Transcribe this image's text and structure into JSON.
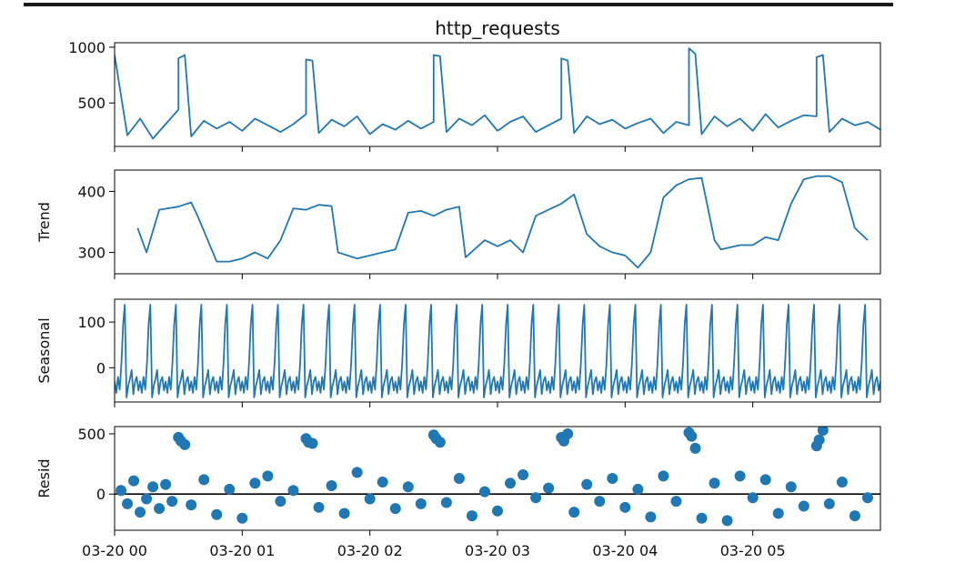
{
  "chart_data": {
    "type": "line",
    "title": "http_requests",
    "x_ticks": [
      "03-20 00",
      "03-20 01",
      "03-20 02",
      "03-20 03",
      "03-20 04",
      "03-20 05"
    ],
    "x_range_hours": [
      0,
      6
    ],
    "series_color": "#1f77b4",
    "panels": [
      {
        "id": "observed",
        "ylabel": "",
        "kind": "line",
        "ylim": [
          110,
          1040
        ],
        "yticks": [
          500,
          1000
        ],
        "x": [
          0.0,
          0.1,
          0.2,
          0.3,
          0.4,
          0.5,
          0.5,
          0.55,
          0.6,
          0.7,
          0.8,
          0.9,
          1.0,
          1.1,
          1.2,
          1.3,
          1.4,
          1.5,
          1.5,
          1.55,
          1.6,
          1.7,
          1.8,
          1.9,
          2.0,
          2.1,
          2.2,
          2.3,
          2.4,
          2.5,
          2.5,
          2.55,
          2.6,
          2.7,
          2.8,
          2.9,
          3.0,
          3.1,
          3.2,
          3.3,
          3.4,
          3.5,
          3.5,
          3.55,
          3.6,
          3.7,
          3.8,
          3.9,
          4.0,
          4.1,
          4.2,
          4.3,
          4.4,
          4.5,
          4.5,
          4.55,
          4.6,
          4.7,
          4.8,
          4.9,
          5.0,
          5.1,
          5.2,
          5.3,
          5.4,
          5.5,
          5.5,
          5.55,
          5.6,
          5.7,
          5.8,
          5.9,
          6.0
        ],
        "values": [
          930,
          210,
          360,
          180,
          310,
          440,
          900,
          930,
          200,
          340,
          270,
          330,
          250,
          360,
          300,
          240,
          310,
          400,
          890,
          880,
          230,
          350,
          290,
          380,
          220,
          310,
          260,
          340,
          270,
          330,
          930,
          920,
          240,
          360,
          300,
          390,
          250,
          330,
          380,
          240,
          300,
          360,
          900,
          880,
          230,
          380,
          310,
          350,
          270,
          320,
          360,
          230,
          330,
          300,
          990,
          940,
          220,
          380,
          290,
          360,
          250,
          400,
          280,
          340,
          390,
          380,
          910,
          930,
          240,
          360,
          300,
          330,
          260
        ]
      },
      {
        "id": "trend",
        "ylabel": "Trend",
        "kind": "line",
        "ylim": [
          265,
          435
        ],
        "yticks": [
          300,
          400
        ],
        "x": [
          0.18,
          0.25,
          0.35,
          0.5,
          0.6,
          0.65,
          0.8,
          0.9,
          1.0,
          1.1,
          1.2,
          1.3,
          1.4,
          1.5,
          1.6,
          1.7,
          1.75,
          1.9,
          2.0,
          2.1,
          2.2,
          2.3,
          2.4,
          2.5,
          2.6,
          2.7,
          2.75,
          2.9,
          3.0,
          3.1,
          3.2,
          3.3,
          3.4,
          3.5,
          3.6,
          3.7,
          3.8,
          3.9,
          4.0,
          4.1,
          4.2,
          4.3,
          4.4,
          4.5,
          4.6,
          4.7,
          4.75,
          4.9,
          5.0,
          5.1,
          5.2,
          5.3,
          5.4,
          5.5,
          5.6,
          5.7,
          5.8,
          5.9
        ],
        "values": [
          340,
          300,
          370,
          375,
          382,
          360,
          285,
          285,
          290,
          300,
          290,
          320,
          372,
          370,
          378,
          376,
          300,
          290,
          295,
          300,
          305,
          365,
          368,
          360,
          370,
          375,
          292,
          320,
          310,
          320,
          300,
          360,
          370,
          380,
          395,
          330,
          310,
          300,
          295,
          275,
          300,
          390,
          410,
          420,
          422,
          320,
          305,
          312,
          312,
          325,
          320,
          380,
          420,
          425,
          425,
          415,
          340,
          320
        ]
      },
      {
        "id": "seasonal",
        "ylabel": "Seasonal",
        "kind": "line",
        "ylim": [
          -75,
          150
        ],
        "yticks": [
          0,
          100
        ],
        "period_hours": 0.2,
        "cycle_values": [
          -30,
          -55,
          -20,
          -48,
          10,
          95,
          138,
          -65,
          -40,
          -25,
          -5,
          -58,
          -30,
          -20,
          -50
        ],
        "x_end_hours": 6.0
      },
      {
        "id": "resid",
        "ylabel": "Resid",
        "kind": "scatter",
        "ylim": [
          -300,
          560
        ],
        "yticks": [
          0,
          500
        ],
        "zero_line": true,
        "x": [
          0.05,
          0.1,
          0.15,
          0.2,
          0.25,
          0.3,
          0.35,
          0.4,
          0.45,
          0.5,
          0.52,
          0.55,
          0.6,
          0.7,
          0.8,
          0.9,
          1.0,
          1.1,
          1.2,
          1.3,
          1.4,
          1.5,
          1.52,
          1.55,
          1.6,
          1.7,
          1.8,
          1.9,
          2.0,
          2.1,
          2.2,
          2.3,
          2.4,
          2.5,
          2.52,
          2.55,
          2.6,
          2.7,
          2.8,
          2.9,
          3.0,
          3.1,
          3.2,
          3.3,
          3.4,
          3.5,
          3.52,
          3.55,
          3.6,
          3.7,
          3.8,
          3.9,
          4.0,
          4.1,
          4.2,
          4.3,
          4.4,
          4.5,
          4.52,
          4.55,
          4.6,
          4.7,
          4.8,
          4.9,
          5.0,
          5.1,
          5.2,
          5.3,
          5.4,
          5.5,
          5.52,
          5.55,
          5.6,
          5.7,
          5.8,
          5.9
        ],
        "values": [
          30,
          -80,
          110,
          -150,
          -40,
          60,
          -120,
          80,
          -60,
          470,
          440,
          410,
          -90,
          120,
          -170,
          40,
          -200,
          90,
          150,
          -60,
          30,
          460,
          430,
          420,
          -110,
          70,
          -160,
          180,
          -40,
          100,
          -120,
          60,
          -80,
          490,
          460,
          430,
          -70,
          130,
          -180,
          20,
          -140,
          90,
          160,
          -30,
          50,
          470,
          440,
          500,
          -150,
          80,
          -60,
          130,
          -110,
          40,
          -190,
          150,
          -60,
          510,
          480,
          380,
          -200,
          90,
          -220,
          150,
          -30,
          120,
          -160,
          60,
          -100,
          400,
          450,
          530,
          -80,
          100,
          -180,
          -30
        ]
      }
    ]
  }
}
